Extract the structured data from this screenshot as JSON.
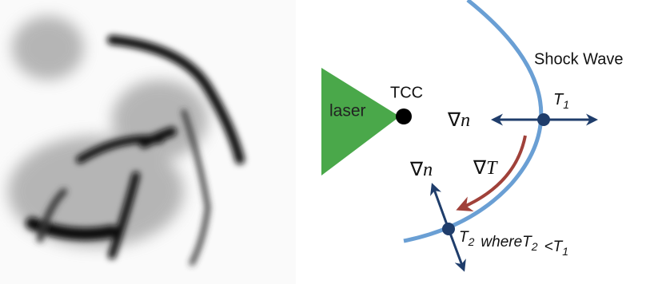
{
  "diagram": {
    "shock_wave": "Shock Wave",
    "laser": "laser",
    "tcc": "TCC",
    "grad_n_upper": {
      "symbol": "∇",
      "var": "n"
    },
    "grad_n_lower": {
      "symbol": "∇",
      "var": "n"
    },
    "grad_t": {
      "symbol": "∇",
      "var": "T"
    },
    "t1": {
      "t": "T",
      "sub": "1"
    },
    "relation": [
      {
        "t": "T",
        "sub": "2"
      },
      "where",
      {
        "t": "T",
        "sub": "2"
      },
      "<",
      {
        "t": "T",
        "sub": "1"
      }
    ]
  }
}
